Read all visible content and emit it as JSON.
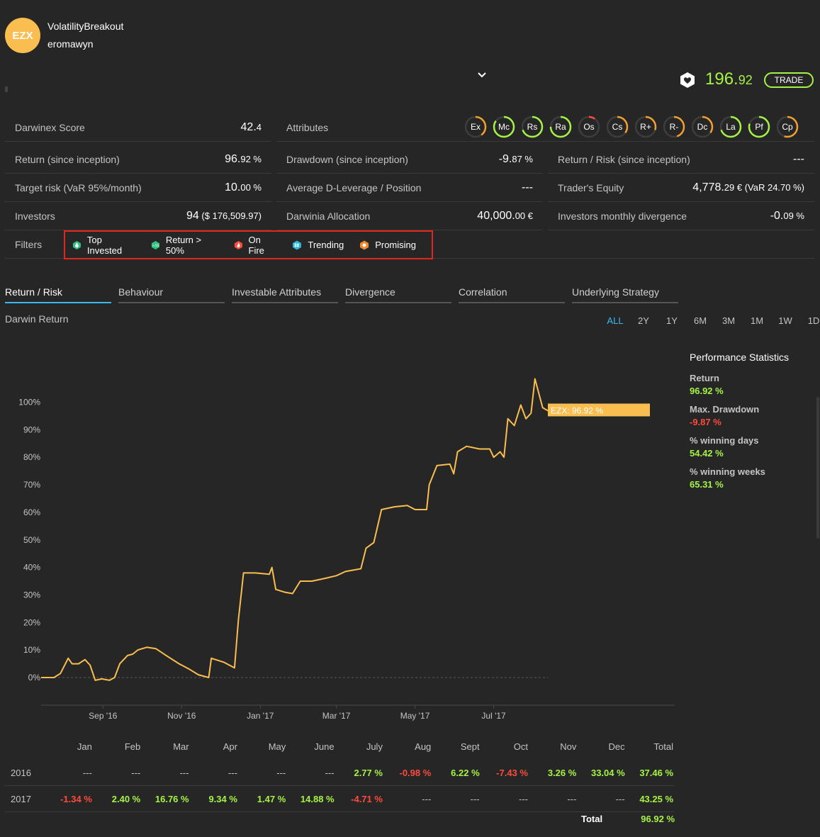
{
  "header": {
    "avatar_text": "EZX",
    "darwin_name": "VolatilityBreakout",
    "trader_name": "eromawyn",
    "quote_int": "196.",
    "quote_dec": "92",
    "trade_label": "TRADE",
    "brand_color": "#f9be4f",
    "accent_color": "#a5f246"
  },
  "stats": {
    "score_label": "Darwinex Score",
    "score_int": "42.",
    "score_dec": "4",
    "attributes_label": "Attributes",
    "return_label": "Return (since inception)",
    "return_int": "96.",
    "return_dec": "92 %",
    "drawdown_label": "Drawdown (since inception)",
    "drawdown_int": "-9.",
    "drawdown_dec": "87 %",
    "return_risk_label": "Return / Risk (since inception)",
    "return_risk_value": "---",
    "target_risk_label": "Target risk (VaR 95%/month)",
    "target_risk_int": "10.",
    "target_risk_dec": "00 %",
    "dleverage_label": "Average D-Leverage / Position",
    "dleverage_value": "---",
    "equity_label": "Trader's Equity",
    "equity_int": "4,778.",
    "equity_dec": "29 € (VaR 24.70 %)",
    "investors_label": "Investors",
    "investors_int": "94",
    "investors_dec": " ($ 176,509.97)",
    "allocation_label": "Darwinia Allocation",
    "allocation_int": "40,000.",
    "allocation_dec": "00 €",
    "divergence_label": "Investors monthly divergence",
    "divergence_int": "-0.",
    "divergence_dec": "09 %",
    "filters_label": "Filters"
  },
  "attributes": [
    {
      "label": "Ex",
      "level": 0.4,
      "color": "#f0a030"
    },
    {
      "label": "Mc",
      "level": 0.85,
      "color": "#a5f246"
    },
    {
      "label": "Rs",
      "level": 0.7,
      "color": "#a5f246"
    },
    {
      "label": "Ra",
      "level": 0.75,
      "color": "#a5f246"
    },
    {
      "label": "Os",
      "level": 0.1,
      "color": "#ff4a3d"
    },
    {
      "label": "Cs",
      "level": 0.35,
      "color": "#f0a030"
    },
    {
      "label": "R+",
      "level": 0.3,
      "color": "#f0a030"
    },
    {
      "label": "R-",
      "level": 0.45,
      "color": "#f0a030"
    },
    {
      "label": "Dc",
      "level": 0.35,
      "color": "#f0a030"
    },
    {
      "label": "La",
      "level": 0.7,
      "color": "#a5f246"
    },
    {
      "label": "Pf",
      "level": 0.8,
      "color": "#a5f246"
    },
    {
      "label": "Cp",
      "level": 0.55,
      "color": "#f0a030"
    }
  ],
  "filters": [
    {
      "label": "Top Invested",
      "icon": "bag-icon",
      "color": "#2ec27e"
    },
    {
      "label": "Return > 50%",
      "icon": "return-50-icon",
      "color": "#2ec27e",
      "icon_text": ">50"
    },
    {
      "label": "On Fire",
      "icon": "fire-icon",
      "color": "#ff4a3d"
    },
    {
      "label": "Trending",
      "icon": "hashtag-icon",
      "color": "#2bb7d9"
    },
    {
      "label": "Promising",
      "icon": "promising-icon",
      "color": "#f08a2b"
    }
  ],
  "tabs": [
    "Return / Risk",
    "Behaviour",
    "Investable Attributes",
    "Divergence",
    "Correlation",
    "Underlying Strategy"
  ],
  "chart_title": "Darwin Return",
  "ranges": [
    "ALL",
    "2Y",
    "1Y",
    "6M",
    "3M",
    "1M",
    "1W",
    "1D"
  ],
  "chart_data": {
    "type": "line",
    "series": [
      {
        "color": "#f9be4f",
        "points": [
          [
            "2016-07-15",
            0
          ],
          [
            "2016-07-25",
            0
          ],
          [
            "2016-07-30",
            1.5
          ],
          [
            "2016-08-05",
            7
          ],
          [
            "2016-08-08",
            5
          ],
          [
            "2016-08-13",
            5
          ],
          [
            "2016-08-18",
            6.5
          ],
          [
            "2016-08-22",
            4.5
          ],
          [
            "2016-08-26",
            -1
          ],
          [
            "2016-08-31",
            -0.5
          ],
          [
            "2016-09-06",
            -1
          ],
          [
            "2016-09-10",
            0
          ],
          [
            "2016-09-14",
            5
          ],
          [
            "2016-09-20",
            8
          ],
          [
            "2016-09-24",
            8.5
          ],
          [
            "2016-09-28",
            10
          ],
          [
            "2016-10-05",
            11
          ],
          [
            "2016-10-12",
            10.5
          ],
          [
            "2016-10-20",
            8
          ],
          [
            "2016-10-30",
            5
          ],
          [
            "2016-11-07",
            3
          ],
          [
            "2016-11-14",
            1
          ],
          [
            "2016-11-22",
            0
          ],
          [
            "2016-11-24",
            7
          ],
          [
            "2016-12-04",
            5.5
          ],
          [
            "2016-12-12",
            3.5
          ],
          [
            "2016-12-15",
            21
          ],
          [
            "2016-12-19",
            38
          ],
          [
            "2016-12-28",
            38
          ],
          [
            "2017-01-08",
            37.5
          ],
          [
            "2017-01-10",
            40
          ],
          [
            "2017-01-13",
            32
          ],
          [
            "2017-01-20",
            31
          ],
          [
            "2017-01-26",
            30.5
          ],
          [
            "2017-02-01",
            35
          ],
          [
            "2017-02-10",
            35
          ],
          [
            "2017-02-20",
            36
          ],
          [
            "2017-03-01",
            37
          ],
          [
            "2017-03-08",
            38.5
          ],
          [
            "2017-03-20",
            39.5
          ],
          [
            "2017-03-24",
            47
          ],
          [
            "2017-03-30",
            49
          ],
          [
            "2017-04-05",
            61
          ],
          [
            "2017-04-15",
            62
          ],
          [
            "2017-04-25",
            62.5
          ],
          [
            "2017-05-01",
            61
          ],
          [
            "2017-05-10",
            61
          ],
          [
            "2017-05-12",
            70
          ],
          [
            "2017-05-18",
            77
          ],
          [
            "2017-05-28",
            77.5
          ],
          [
            "2017-05-31",
            74
          ],
          [
            "2017-06-03",
            82
          ],
          [
            "2017-06-10",
            84
          ],
          [
            "2017-06-20",
            83
          ],
          [
            "2017-06-28",
            83
          ],
          [
            "2017-07-01",
            80
          ],
          [
            "2017-07-06",
            82
          ],
          [
            "2017-07-09",
            80
          ],
          [
            "2017-07-12",
            94
          ],
          [
            "2017-07-17",
            91.5
          ],
          [
            "2017-07-22",
            99
          ],
          [
            "2017-07-26",
            94
          ],
          [
            "2017-07-30",
            96
          ],
          [
            "2017-08-02",
            108.5
          ],
          [
            "2017-08-08",
            98
          ],
          [
            "2017-08-12",
            96.92
          ]
        ]
      }
    ],
    "x_ticks": [
      "Sep '16",
      "Nov '16",
      "Jan '17",
      "Mar '17",
      "May '17",
      "Jul '17"
    ],
    "y_ticks": [
      "0%",
      "10%",
      "20%",
      "30%",
      "40%",
      "50%",
      "60%",
      "70%",
      "80%",
      "90%",
      "100%"
    ],
    "ylim": [
      -10,
      115
    ],
    "tooltip": "EZX: 96.92 %"
  },
  "performance": {
    "title": "Performance Statistics",
    "items": [
      {
        "label": "Return",
        "value": "96.92 %",
        "tone": "green"
      },
      {
        "label": "Max. Drawdown",
        "value": "-9.87 %",
        "tone": "red"
      },
      {
        "label": "% winning days",
        "value": "54.42 %",
        "tone": "green"
      },
      {
        "label": "% winning weeks",
        "value": "65.31 %",
        "tone": "green"
      }
    ]
  },
  "monthly": {
    "months": [
      "Jan",
      "Feb",
      "Mar",
      "Apr",
      "May",
      "June",
      "July",
      "Aug",
      "Sept",
      "Oct",
      "Nov",
      "Dec"
    ],
    "total_label": "Total",
    "rows": [
      {
        "year": "2016",
        "values": [
          "---",
          "---",
          "---",
          "---",
          "---",
          "---",
          "2.77 %",
          "-0.98 %",
          "6.22 %",
          "-7.43 %",
          "3.26 %",
          "33.04 %"
        ],
        "total": "37.46 %"
      },
      {
        "year": "2017",
        "values": [
          "-1.34 %",
          "2.40 %",
          "16.76 %",
          "9.34 %",
          "1.47 %",
          "14.88 %",
          "-4.71 %",
          "---",
          "---",
          "---",
          "---",
          "---"
        ],
        "total": "43.25 %"
      }
    ],
    "grand_label": "Total",
    "grand_value": "96.92 %"
  }
}
